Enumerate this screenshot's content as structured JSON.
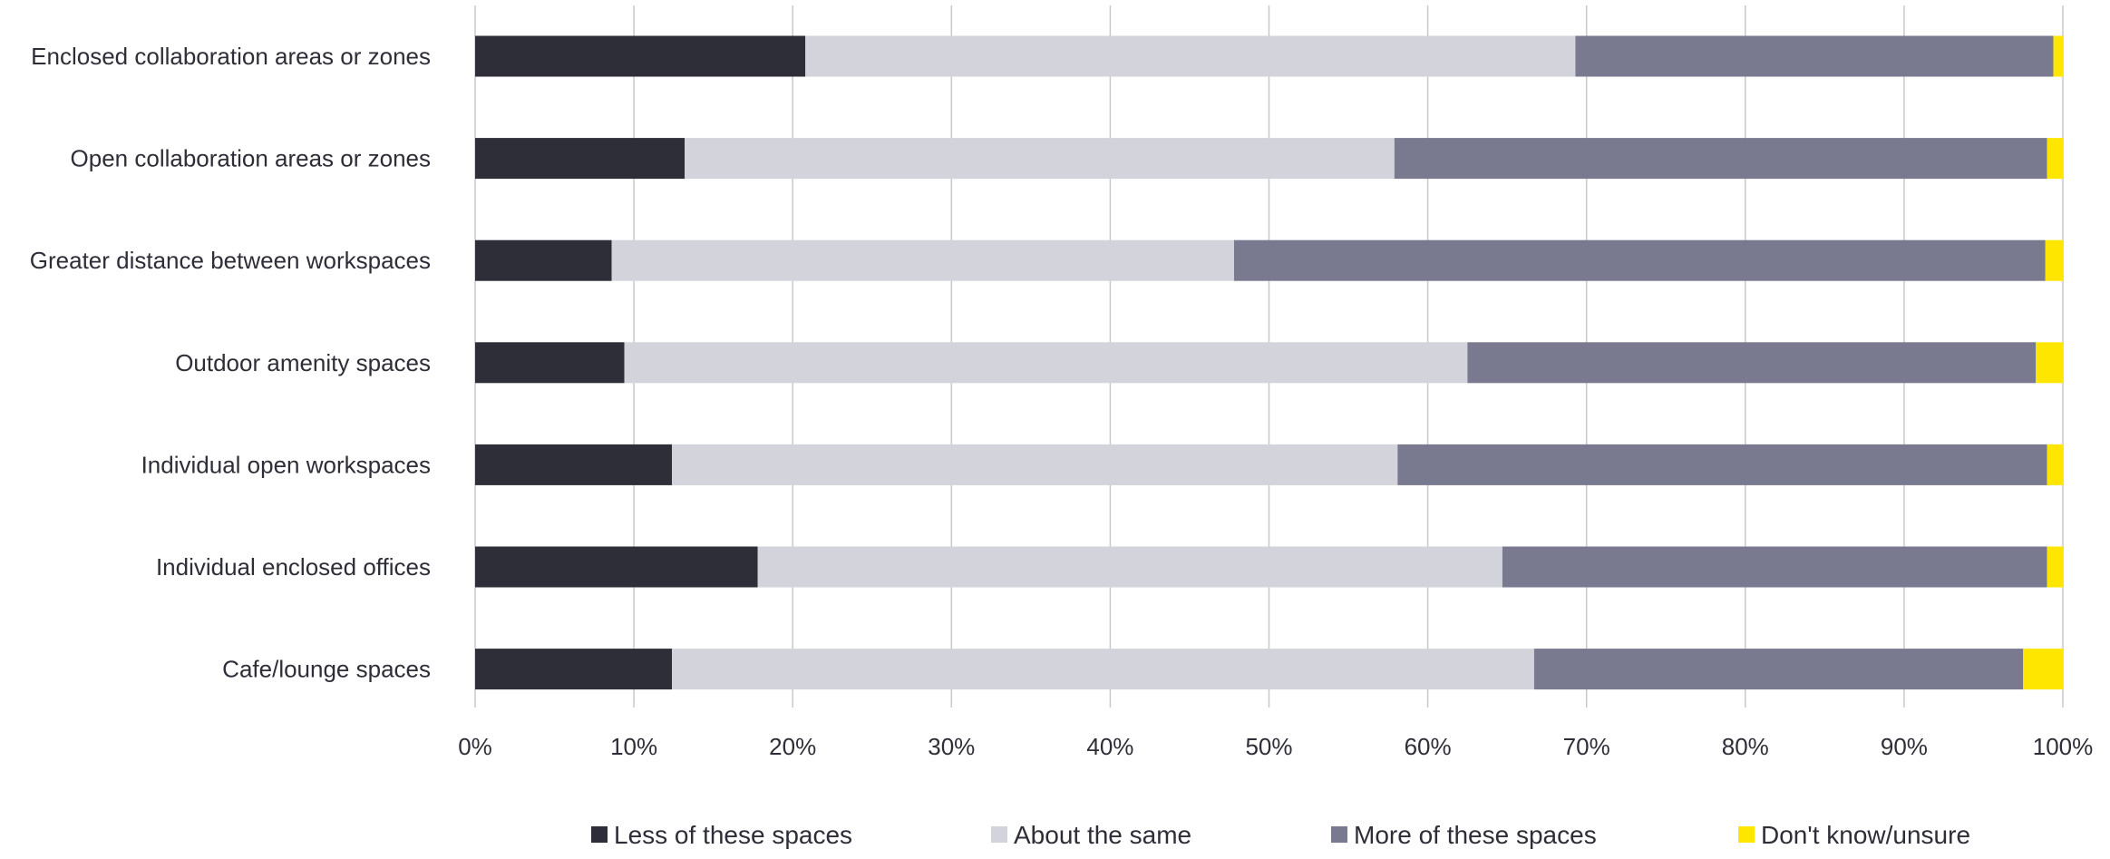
{
  "chart_data": {
    "type": "bar",
    "orientation": "horizontal",
    "stacked": true,
    "title": "",
    "xlabel": "",
    "ylabel": "",
    "xlim": [
      0,
      100
    ],
    "x_ticks": [
      "0%",
      "10%",
      "20%",
      "30%",
      "40%",
      "50%",
      "60%",
      "70%",
      "80%",
      "90%",
      "100%"
    ],
    "grid": "vertical",
    "legend_position": "bottom-center",
    "categories": [
      "Enclosed collaboration areas or zones",
      "Open collaboration areas or zones",
      "Greater distance between workspaces",
      "Outdoor amenity spaces",
      "Individual open workspaces",
      "Individual enclosed offices",
      "Cafe/lounge spaces"
    ],
    "series": [
      {
        "name": "Less of these spaces",
        "color": "#2e2e38",
        "values": [
          20.8,
          13.2,
          8.6,
          9.4,
          12.4,
          17.8,
          12.4
        ]
      },
      {
        "name": "About the same",
        "color": "#d3d3db",
        "values": [
          48.5,
          44.7,
          39.2,
          53.1,
          45.7,
          46.9,
          54.3
        ]
      },
      {
        "name": "More of these spaces",
        "color": "#797990",
        "values": [
          30.1,
          41.1,
          51.1,
          35.8,
          40.9,
          34.3,
          30.8
        ]
      },
      {
        "name": "Don't know/unsure",
        "color": "#ffe600",
        "values": [
          0.6,
          1.0,
          1.1,
          1.7,
          1.0,
          1.0,
          2.5
        ]
      }
    ]
  }
}
